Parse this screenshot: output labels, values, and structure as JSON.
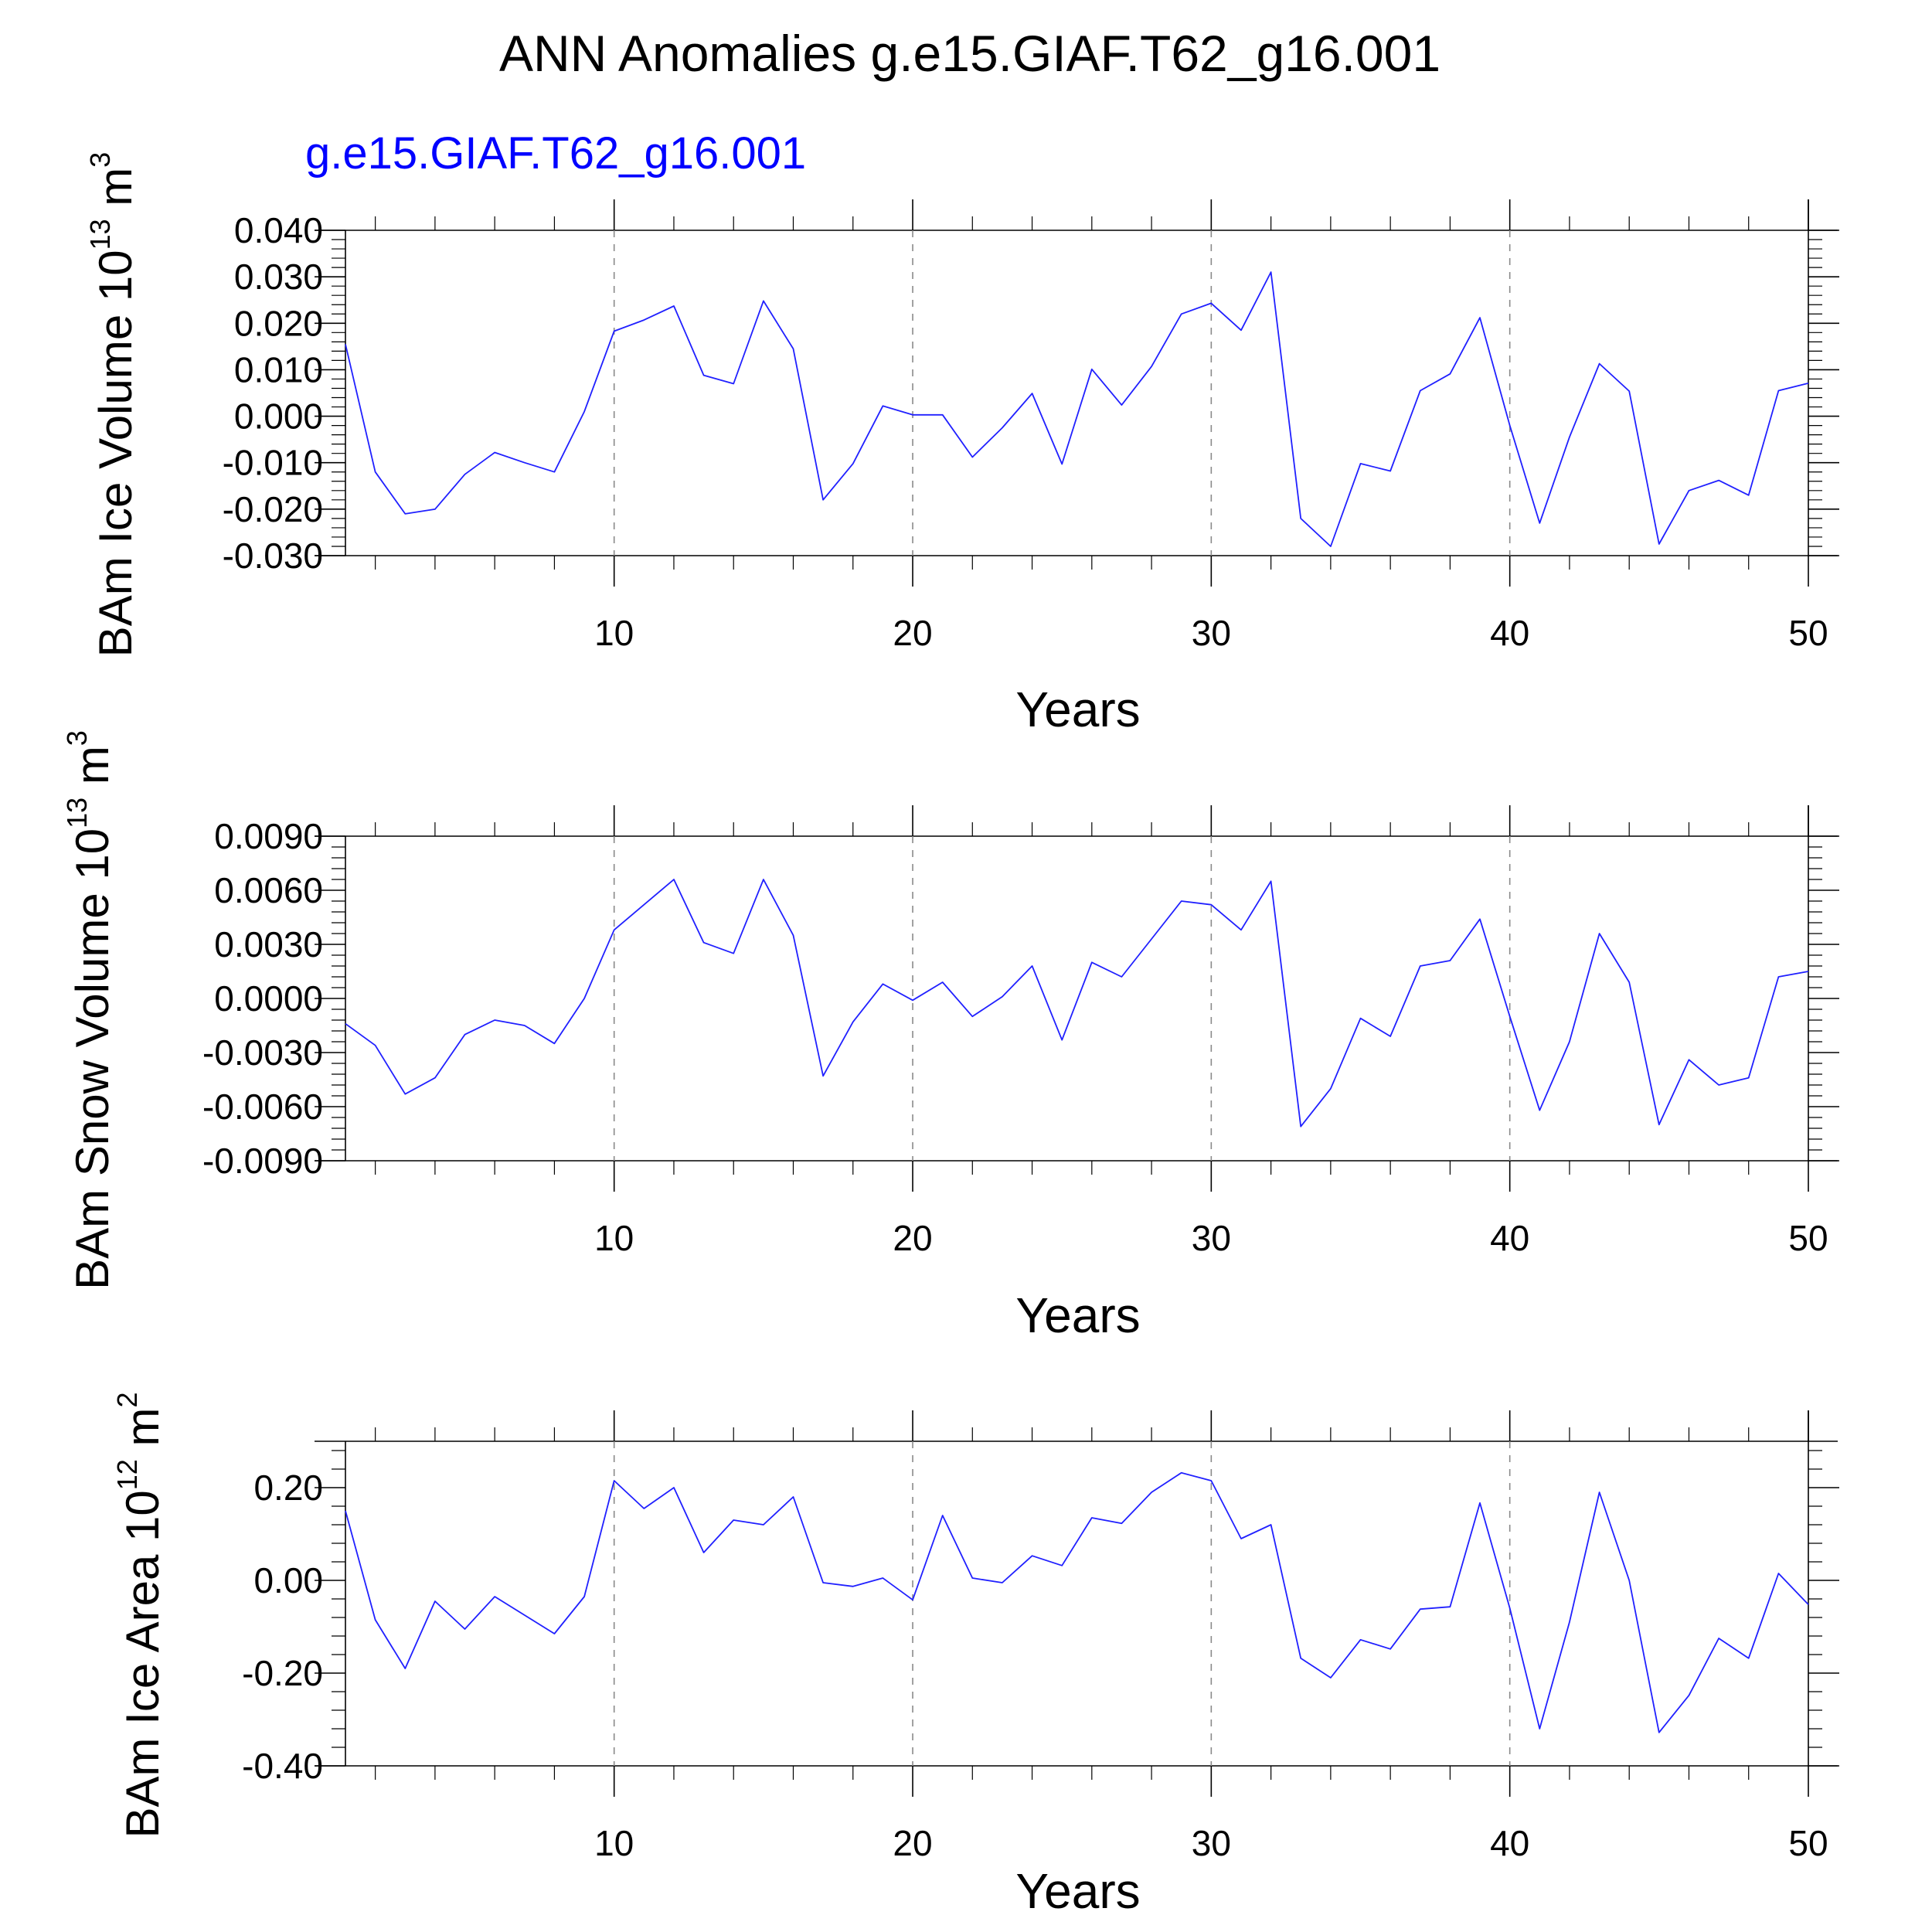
{
  "title": "ANN Anomalies g.e15.GIAF.T62_g16.001",
  "subtitle": "g.e15.GIAF.T62_g16.001",
  "colors": {
    "series": "#2020ff",
    "subtitle": "#0000ff",
    "grid": "#8a8a8a",
    "axis": "#000000"
  },
  "chart_data": [
    {
      "type": "line",
      "xlabel": "Years",
      "ylabel": {
        "main": "BAm Ice Volume 10",
        "sup": "13",
        "unit": " m",
        "unit_sup": "3"
      },
      "xlim": [
        1,
        50
      ],
      "ylim": [
        -0.03,
        0.04
      ],
      "x_ticks": [
        10,
        20,
        30,
        40,
        50
      ],
      "y_ticks": [
        -0.03,
        -0.02,
        -0.01,
        0.0,
        0.01,
        0.02,
        0.03,
        0.04
      ],
      "y_tick_labels": [
        "-0.030",
        "-0.020",
        "-0.010",
        "0.000",
        "0.010",
        "0.020",
        "0.030",
        "0.040"
      ],
      "grid": "dashed vertical at major x ticks",
      "series": [
        {
          "name": "g.e15.GIAF.T62_g16.001",
          "x": [
            1,
            2,
            3,
            4,
            5,
            6,
            7,
            8,
            9,
            10,
            11,
            12,
            13,
            14,
            15,
            16,
            17,
            18,
            19,
            20,
            21,
            22,
            23,
            24,
            25,
            26,
            27,
            28,
            29,
            30,
            31,
            32,
            33,
            34,
            35,
            36,
            37,
            38,
            39,
            40,
            41,
            42,
            43,
            44,
            45,
            46,
            47,
            48,
            49,
            50
          ],
          "values": [
            0.0155,
            -0.012,
            -0.021,
            -0.02,
            -0.0125,
            -0.0078,
            -0.01,
            -0.012,
            0.001,
            0.0183,
            0.0207,
            0.0237,
            0.0088,
            0.007,
            0.0248,
            0.0145,
            -0.018,
            -0.0102,
            0.0022,
            0.0003,
            0.0003,
            -0.0088,
            -0.0025,
            0.0049,
            -0.0103,
            0.0101,
            0.0024,
            0.0107,
            0.022,
            0.0243,
            0.0185,
            0.031,
            -0.022,
            -0.028,
            -0.0102,
            -0.0118,
            0.0055,
            0.0091,
            0.0212,
            -0.002,
            -0.023,
            -0.0045,
            0.0113,
            0.0054,
            -0.0275,
            -0.016,
            -0.0138,
            -0.017,
            0.0055,
            0.0071
          ]
        }
      ]
    },
    {
      "type": "line",
      "xlabel": "Years",
      "ylabel": {
        "main": "BAm Snow Volume 10",
        "sup": "13",
        "unit": " m",
        "unit_sup": "3"
      },
      "xlim": [
        1,
        50
      ],
      "ylim": [
        -0.009,
        0.009
      ],
      "x_ticks": [
        10,
        20,
        30,
        40,
        50
      ],
      "y_ticks": [
        -0.009,
        -0.006,
        -0.003,
        0.0,
        0.003,
        0.006,
        0.009
      ],
      "y_tick_labels": [
        "-0.0090",
        "-0.0060",
        "-0.0030",
        "0.0000",
        "0.0030",
        "0.0060",
        "0.0090"
      ],
      "grid": "dashed vertical at major x ticks",
      "series": [
        {
          "name": "g.e15.GIAF.T62_g16.001",
          "x": [
            1,
            2,
            3,
            4,
            5,
            6,
            7,
            8,
            9,
            10,
            11,
            12,
            13,
            14,
            15,
            16,
            17,
            18,
            19,
            20,
            21,
            22,
            23,
            24,
            25,
            26,
            27,
            28,
            29,
            30,
            31,
            32,
            33,
            34,
            35,
            36,
            37,
            38,
            39,
            40,
            41,
            42,
            43,
            44,
            45,
            46,
            47,
            48,
            49,
            50
          ],
          "values": [
            -0.0014,
            -0.0026,
            -0.0053,
            -0.0044,
            -0.002,
            -0.0012,
            -0.0015,
            -0.0025,
            0.0,
            0.0038,
            0.0052,
            0.0066,
            0.0031,
            0.0025,
            0.0066,
            0.0035,
            -0.0043,
            -0.0013,
            0.0008,
            -0.0001,
            0.0009,
            -0.001,
            0.0001,
            0.0018,
            -0.0023,
            0.002,
            0.0012,
            0.0033,
            0.0054,
            0.0052,
            0.0038,
            0.0065,
            -0.0071,
            -0.005,
            -0.0011,
            -0.0021,
            0.0018,
            0.0021,
            0.0044,
            -0.001,
            -0.0062,
            -0.0024,
            0.0036,
            0.0009,
            -0.007,
            -0.0034,
            -0.0048,
            -0.0044,
            0.0012,
            0.0015
          ]
        }
      ]
    },
    {
      "type": "line",
      "xlabel": "Years",
      "ylabel": {
        "main": "BAm Ice Area 10",
        "sup": "12",
        "unit": " m",
        "unit_sup": "2"
      },
      "xlim": [
        1,
        50
      ],
      "ylim": [
        -0.4,
        0.3
      ],
      "x_ticks": [
        10,
        20,
        30,
        40,
        50
      ],
      "y_ticks": [
        -0.4,
        -0.2,
        0.0,
        0.2
      ],
      "y_tick_labels": [
        "-0.40",
        "-0.20",
        "0.00",
        "0.20"
      ],
      "grid": "dashed vertical at major x ticks",
      "series": [
        {
          "name": "g.e15.GIAF.T62_g16.001",
          "x": [
            1,
            2,
            3,
            4,
            5,
            6,
            7,
            8,
            9,
            10,
            11,
            12,
            13,
            14,
            15,
            16,
            17,
            18,
            19,
            20,
            21,
            22,
            23,
            24,
            25,
            26,
            27,
            28,
            29,
            30,
            31,
            32,
            33,
            34,
            35,
            36,
            37,
            38,
            39,
            40,
            41,
            42,
            43,
            44,
            45,
            46,
            47,
            48,
            49,
            50
          ],
          "values": [
            0.15,
            -0.085,
            -0.19,
            -0.045,
            -0.105,
            -0.035,
            -0.075,
            -0.115,
            -0.035,
            0.215,
            0.155,
            0.2,
            0.06,
            0.13,
            0.12,
            0.18,
            -0.005,
            -0.013,
            0.005,
            -0.042,
            0.14,
            0.005,
            -0.005,
            0.053,
            0.032,
            0.135,
            0.123,
            0.19,
            0.232,
            0.215,
            0.09,
            0.12,
            -0.168,
            -0.21,
            -0.128,
            -0.148,
            -0.062,
            -0.057,
            0.167,
            -0.06,
            -0.32,
            -0.09,
            0.19,
            0.0,
            -0.328,
            -0.248,
            -0.125,
            -0.168,
            0.015,
            -0.052
          ]
        }
      ]
    }
  ]
}
